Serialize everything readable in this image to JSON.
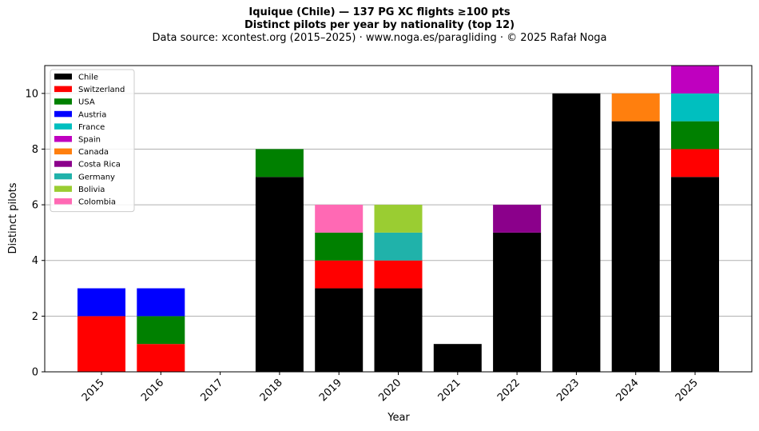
{
  "header": {
    "title": "Iquique (Chile)  —  137 PG XC flights ≥100 pts",
    "subtitle": "Distinct pilots per year by nationality (top 12)",
    "source": "Data source: xcontest.org (2015–2025)  ·  www.noga.es/paragliding  ·  © 2025 Rafał Noga"
  },
  "chart_data": {
    "type": "bar",
    "stacked": true,
    "xlabel": "Year",
    "ylabel": "Distinct pilots",
    "ylim": [
      0,
      11
    ],
    "yticks": [
      0,
      2,
      4,
      6,
      8,
      10
    ],
    "grid": "horizontal",
    "legend_position": "top-left",
    "categories": [
      "2015",
      "2016",
      "2017",
      "2018",
      "2019",
      "2020",
      "2021",
      "2022",
      "2023",
      "2024",
      "2025"
    ],
    "series": [
      {
        "name": "Chile",
        "color": "#000000",
        "values": [
          0,
          0,
          0,
          7,
          3,
          3,
          1,
          5,
          10,
          9,
          7
        ]
      },
      {
        "name": "Switzerland",
        "color": "#ff0000",
        "values": [
          2,
          1,
          0,
          0,
          1,
          1,
          0,
          0,
          0,
          0,
          1
        ]
      },
      {
        "name": "USA",
        "color": "#008000",
        "values": [
          0,
          1,
          0,
          1,
          1,
          0,
          0,
          0,
          0,
          0,
          1
        ]
      },
      {
        "name": "Austria",
        "color": "#0000ff",
        "values": [
          1,
          1,
          0,
          0,
          0,
          0,
          0,
          0,
          0,
          0,
          0
        ]
      },
      {
        "name": "France",
        "color": "#00bfbf",
        "values": [
          0,
          0,
          0,
          0,
          0,
          0,
          0,
          0,
          0,
          0,
          1
        ]
      },
      {
        "name": "Spain",
        "color": "#bf00bf",
        "values": [
          0,
          0,
          0,
          0,
          0,
          0,
          0,
          0,
          0,
          0,
          1
        ]
      },
      {
        "name": "Canada",
        "color": "#ff7f0e",
        "values": [
          0,
          0,
          0,
          0,
          0,
          0,
          0,
          0,
          0,
          1,
          0
        ]
      },
      {
        "name": "Costa Rica",
        "color": "#8b008b",
        "values": [
          0,
          0,
          0,
          0,
          0,
          0,
          0,
          1,
          0,
          0,
          0
        ]
      },
      {
        "name": "Germany",
        "color": "#20b2aa",
        "values": [
          0,
          0,
          0,
          0,
          0,
          1,
          0,
          0,
          0,
          0,
          0
        ]
      },
      {
        "name": "Bolivia",
        "color": "#9acd32",
        "values": [
          0,
          0,
          0,
          0,
          0,
          1,
          0,
          0,
          0,
          0,
          0
        ]
      },
      {
        "name": "Colombia",
        "color": "#ff69b4",
        "values": [
          0,
          0,
          0,
          0,
          1,
          0,
          0,
          0,
          0,
          0,
          0
        ]
      }
    ]
  }
}
